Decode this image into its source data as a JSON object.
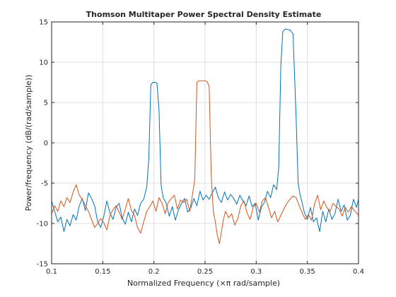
{
  "chart_data": {
    "type": "line",
    "title": "Thomson Multitaper Power Spectral Density Estimate",
    "xlabel": "Normalized Frequency  (×π rad/sample)",
    "ylabel": "Power/frequency (dB/(rad/sample))",
    "xlim": [
      0.1,
      0.4
    ],
    "ylim": [
      -15,
      15
    ],
    "xticks": [
      0.1,
      0.15,
      0.2,
      0.25,
      0.3,
      0.35,
      0.4
    ],
    "xtick_labels": [
      "0.1",
      "0.15",
      "0.2",
      "0.25",
      "0.3",
      "0.35",
      "0.4"
    ],
    "yticks": [
      -15,
      -10,
      -5,
      0,
      5,
      10,
      15
    ],
    "ytick_labels": [
      "-15",
      "-10",
      "-5",
      "0",
      "5",
      "10",
      "15"
    ],
    "grid": true,
    "legend": "none",
    "series": [
      {
        "color": "#0072BD",
        "x": [
          0.1,
          0.103,
          0.106,
          0.109,
          0.112,
          0.115,
          0.118,
          0.121,
          0.124,
          0.127,
          0.13,
          0.133,
          0.136,
          0.139,
          0.142,
          0.145,
          0.148,
          0.151,
          0.154,
          0.157,
          0.16,
          0.163,
          0.166,
          0.169,
          0.172,
          0.175,
          0.178,
          0.181,
          0.184,
          0.187,
          0.19,
          0.193,
          0.195,
          0.197,
          0.199,
          0.201,
          0.203,
          0.205,
          0.207,
          0.209,
          0.212,
          0.215,
          0.218,
          0.221,
          0.224,
          0.227,
          0.23,
          0.233,
          0.236,
          0.239,
          0.242,
          0.245,
          0.248,
          0.251,
          0.254,
          0.257,
          0.26,
          0.263,
          0.266,
          0.269,
          0.272,
          0.275,
          0.278,
          0.281,
          0.284,
          0.287,
          0.29,
          0.293,
          0.296,
          0.299,
          0.302,
          0.305,
          0.308,
          0.311,
          0.314,
          0.317,
          0.32,
          0.322,
          0.324,
          0.326,
          0.328,
          0.33,
          0.333,
          0.336,
          0.339,
          0.341,
          0.343,
          0.345,
          0.347,
          0.35,
          0.353,
          0.356,
          0.359,
          0.362,
          0.365,
          0.368,
          0.371,
          0.374,
          0.377,
          0.38,
          0.383,
          0.386,
          0.389,
          0.392,
          0.395,
          0.398,
          0.4
        ],
        "y": [
          -7.2,
          -8.5,
          -9.8,
          -9.2,
          -11.0,
          -9.5,
          -10.3,
          -8.9,
          -9.6,
          -7.8,
          -6.9,
          -8.4,
          -6.2,
          -6.9,
          -7.8,
          -9.8,
          -10.5,
          -9.1,
          -7.2,
          -8.7,
          -9.5,
          -8.0,
          -7.5,
          -9.3,
          -10.1,
          -8.6,
          -9.8,
          -8.2,
          -9.0,
          -7.5,
          -7.0,
          -5.5,
          -2.0,
          7.2,
          7.5,
          7.5,
          7.4,
          4.0,
          -5.2,
          -6.8,
          -7.5,
          -9.1,
          -7.9,
          -9.6,
          -8.3,
          -7.5,
          -6.9,
          -8.6,
          -8.1,
          -6.9,
          -7.8,
          -6.0,
          -7.1,
          -6.5,
          -7.0,
          -6.2,
          -5.5,
          -6.8,
          -7.4,
          -6.1,
          -7.1,
          -6.4,
          -6.9,
          -7.6,
          -6.5,
          -7.2,
          -7.8,
          -6.6,
          -7.9,
          -7.5,
          -9.6,
          -8.0,
          -7.4,
          -6.0,
          -6.8,
          -5.2,
          -5.8,
          -3.0,
          9.5,
          13.8,
          14.1,
          14.1,
          14.0,
          13.5,
          3.0,
          -5.0,
          -6.5,
          -7.5,
          -8.6,
          -9.5,
          -8.0,
          -9.8,
          -9.3,
          -11.0,
          -8.5,
          -9.8,
          -8.2,
          -9.5,
          -8.8,
          -7.0,
          -8.5,
          -7.7,
          -9.6,
          -9.0,
          -7.0,
          -8.0,
          -7.0
        ]
      },
      {
        "color": "#D95319",
        "x": [
          0.1,
          0.103,
          0.106,
          0.109,
          0.112,
          0.115,
          0.118,
          0.121,
          0.124,
          0.127,
          0.13,
          0.133,
          0.136,
          0.139,
          0.142,
          0.145,
          0.148,
          0.151,
          0.154,
          0.157,
          0.16,
          0.163,
          0.166,
          0.169,
          0.172,
          0.175,
          0.178,
          0.181,
          0.184,
          0.187,
          0.19,
          0.193,
          0.196,
          0.199,
          0.202,
          0.205,
          0.208,
          0.211,
          0.214,
          0.217,
          0.22,
          0.223,
          0.226,
          0.229,
          0.232,
          0.235,
          0.238,
          0.24,
          0.242,
          0.244,
          0.246,
          0.248,
          0.25,
          0.252,
          0.254,
          0.256,
          0.258,
          0.26,
          0.262,
          0.264,
          0.266,
          0.268,
          0.27,
          0.273,
          0.276,
          0.279,
          0.282,
          0.285,
          0.288,
          0.291,
          0.294,
          0.297,
          0.3,
          0.303,
          0.306,
          0.309,
          0.312,
          0.315,
          0.318,
          0.321,
          0.324,
          0.327,
          0.33,
          0.333,
          0.336,
          0.339,
          0.342,
          0.345,
          0.348,
          0.351,
          0.354,
          0.357,
          0.36,
          0.363,
          0.366,
          0.369,
          0.372,
          0.375,
          0.378,
          0.381,
          0.384,
          0.387,
          0.39,
          0.393,
          0.396,
          0.4
        ],
        "y": [
          -8.8,
          -7.8,
          -8.5,
          -7.2,
          -7.9,
          -6.8,
          -7.4,
          -6.1,
          -5.2,
          -6.5,
          -7.0,
          -7.8,
          -8.5,
          -9.5,
          -10.5,
          -10.0,
          -9.4,
          -9.9,
          -10.8,
          -9.0,
          -8.3,
          -7.8,
          -8.6,
          -9.5,
          -8.2,
          -6.9,
          -8.4,
          -9.0,
          -10.5,
          -11.2,
          -9.8,
          -8.5,
          -7.9,
          -7.2,
          -8.5,
          -6.8,
          -7.5,
          -8.8,
          -7.4,
          -6.9,
          -6.5,
          -8.2,
          -7.1,
          -7.4,
          -7.0,
          -8.5,
          -6.2,
          -4.5,
          7.5,
          7.7,
          7.7,
          7.7,
          7.7,
          7.6,
          7.0,
          -4.0,
          -8.5,
          -9.8,
          -11.5,
          -12.5,
          -11.0,
          -9.5,
          -8.5,
          -9.3,
          -8.8,
          -10.2,
          -9.4,
          -7.8,
          -7.2,
          -8.7,
          -9.5,
          -8.0,
          -7.5,
          -8.6,
          -7.2,
          -6.8,
          -8.0,
          -9.3,
          -8.5,
          -9.8,
          -9.0,
          -8.2,
          -7.5,
          -7.0,
          -6.6,
          -6.8,
          -7.8,
          -8.7,
          -9.5,
          -8.9,
          -9.6,
          -7.6,
          -6.5,
          -8.3,
          -7.2,
          -8.0,
          -8.6,
          -7.5,
          -7.9,
          -8.2,
          -9.1,
          -8.0,
          -8.6,
          -7.9,
          -8.4,
          -9.0
        ]
      }
    ]
  }
}
